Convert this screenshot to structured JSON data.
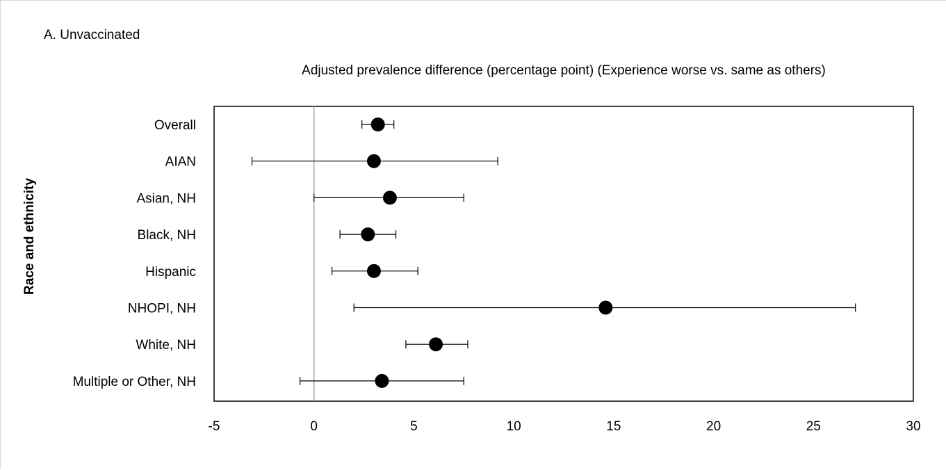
{
  "chart_data": {
    "type": "scatter",
    "panel_label": "A. Unvaccinated",
    "title": "Adjusted prevalence difference (percentage point) (Experience worse vs. same as others)",
    "ylabel": "Race and ethnicity",
    "xlim": [
      -5,
      30
    ],
    "xticks": [
      -5,
      0,
      5,
      10,
      15,
      20,
      25,
      30
    ],
    "reference_line_x": 0,
    "grid": false,
    "categories": [
      "Overall",
      "AIAN",
      "Asian, NH",
      "Black, NH",
      "Hispanic",
      "NHOPI, NH",
      "White, NH",
      "Multiple or Other, NH"
    ],
    "estimates": [
      3.2,
      3.0,
      3.8,
      2.7,
      3.0,
      14.6,
      6.1,
      3.4
    ],
    "ci_lower": [
      2.4,
      -3.1,
      0.0,
      1.3,
      0.9,
      2.0,
      4.6,
      -0.7
    ],
    "ci_upper": [
      4.0,
      9.2,
      7.5,
      4.1,
      5.2,
      27.1,
      7.7,
      7.5
    ],
    "marker_color": "#000000"
  }
}
